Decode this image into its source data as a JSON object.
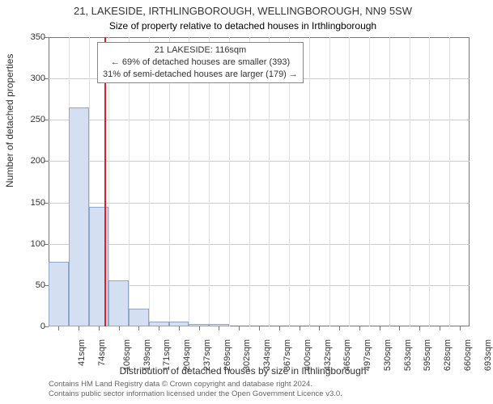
{
  "title": "21, LAKESIDE, IRTHLINGBOROUGH, WELLINGBOROUGH, NN9 5SW",
  "subtitle": "Size of property relative to detached houses in Irthlingborough",
  "xaxis_label": "Distribution of detached houses by size in Irthlingborough",
  "yaxis_label": "Number of detached properties",
  "credits_line1": "Contains HM Land Registry data © Crown copyright and database right 2024.",
  "credits_line2": "Contains public sector information licensed under the Open Government Licence v3.0.",
  "chart": {
    "type": "histogram",
    "background_color": "#ffffff",
    "grid_color": "#cccccc",
    "bar_fill": "#d4e0f2",
    "bar_stroke": "#8ea6c8",
    "refline_color": "#e02020",
    "ylim": [
      0,
      350
    ],
    "ytick_step": 50,
    "yticks": [
      0,
      50,
      100,
      150,
      200,
      250,
      300,
      350
    ],
    "xticks": [
      "41sqm",
      "74sqm",
      "106sqm",
      "139sqm",
      "171sqm",
      "204sqm",
      "237sqm",
      "269sqm",
      "302sqm",
      "334sqm",
      "367sqm",
      "400sqm",
      "432sqm",
      "465sqm",
      "497sqm",
      "530sqm",
      "563sqm",
      "595sqm",
      "628sqm",
      "660sqm",
      "693sqm"
    ],
    "values": [
      78,
      265,
      145,
      56,
      22,
      6,
      6,
      3,
      3,
      0,
      0,
      0,
      0,
      0,
      0,
      0,
      0,
      0,
      0,
      0,
      0
    ],
    "refline_value_sqm": 116,
    "annotation": {
      "line1": "21 LAKESIDE: 116sqm",
      "line2": "← 69% of detached houses are smaller (393)",
      "line3": "31% of semi-detached houses are larger (179) →"
    }
  }
}
